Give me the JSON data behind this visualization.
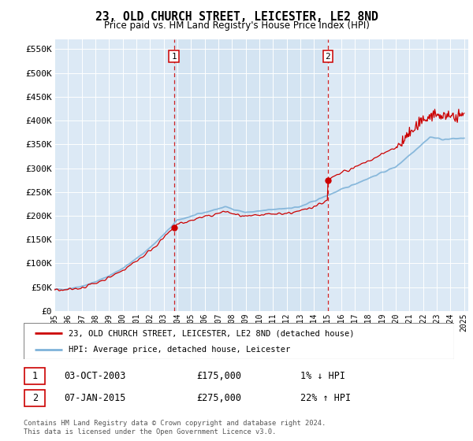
{
  "title": "23, OLD CHURCH STREET, LEICESTER, LE2 8ND",
  "subtitle": "Price paid vs. HM Land Registry's House Price Index (HPI)",
  "ylim": [
    0,
    570000
  ],
  "yticks": [
    0,
    50000,
    100000,
    150000,
    200000,
    250000,
    300000,
    350000,
    400000,
    450000,
    500000,
    550000
  ],
  "ytick_labels": [
    "£0",
    "£50K",
    "£100K",
    "£150K",
    "£200K",
    "£250K",
    "£300K",
    "£350K",
    "£400K",
    "£450K",
    "£500K",
    "£550K"
  ],
  "bg_color": "#dce9f5",
  "bg_shade_color": "#cde0f0",
  "line1_color": "#cc0000",
  "line2_color": "#7fb3d9",
  "sale1_year": 2003.75,
  "sale1_price": 175000,
  "sale2_year": 2015.02,
  "sale2_price": 275000,
  "legend_line1": "23, OLD CHURCH STREET, LEICESTER, LE2 8ND (detached house)",
  "legend_line2": "HPI: Average price, detached house, Leicester",
  "table_row1_num": "1",
  "table_row1_date": "03-OCT-2003",
  "table_row1_price": "£175,000",
  "table_row1_hpi": "1% ↓ HPI",
  "table_row2_num": "2",
  "table_row2_date": "07-JAN-2015",
  "table_row2_price": "£275,000",
  "table_row2_hpi": "22% ↑ HPI",
  "footer": "Contains HM Land Registry data © Crown copyright and database right 2024.\nThis data is licensed under the Open Government Licence v3.0."
}
